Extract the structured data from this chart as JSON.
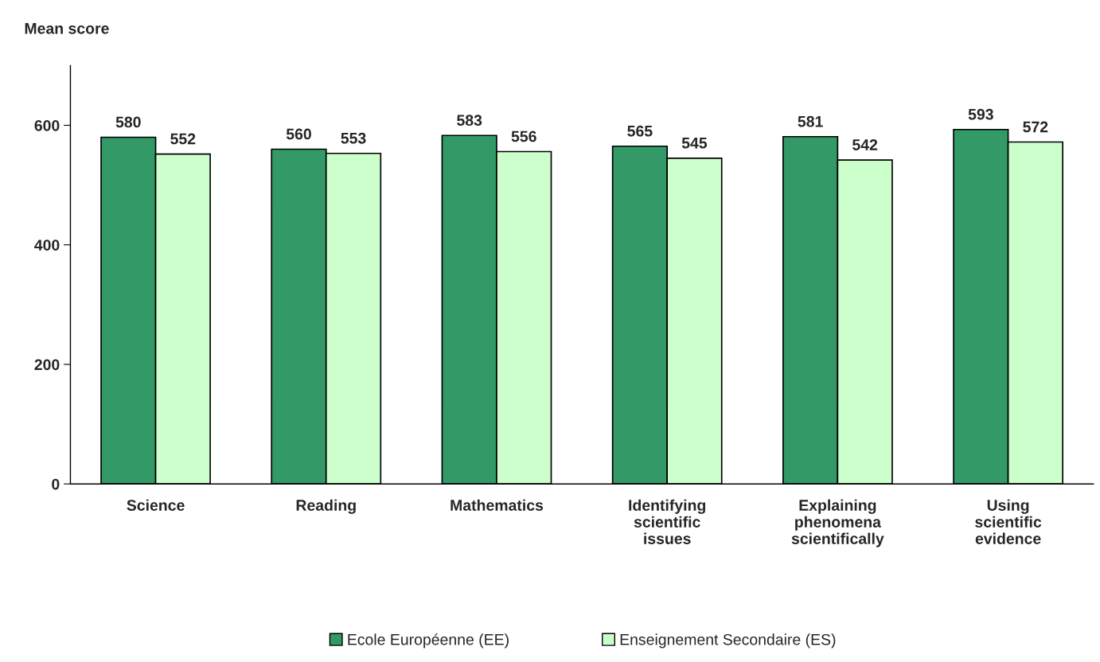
{
  "chart_data": {
    "type": "bar",
    "ylabel": "Mean score",
    "categories": [
      "Science",
      "Reading",
      "Mathematics",
      "Identifying\nscientific\nissues",
      "Explaining\nphenomena\nscientifically",
      "Using\nscientific\nevidence"
    ],
    "series": [
      {
        "name": "Ecole Européenne (EE)",
        "color": "#339966",
        "values": [
          580,
          560,
          583,
          565,
          581,
          593
        ]
      },
      {
        "name": "Enseignement Secondaire (ES)",
        "color": "#ccffcc",
        "values": [
          552,
          553,
          556,
          545,
          542,
          572
        ]
      }
    ],
    "ylim": [
      0,
      700
    ],
    "yticks": [
      0,
      200,
      400,
      600
    ],
    "data_labels": true,
    "grid": false,
    "legend": "bottom"
  }
}
